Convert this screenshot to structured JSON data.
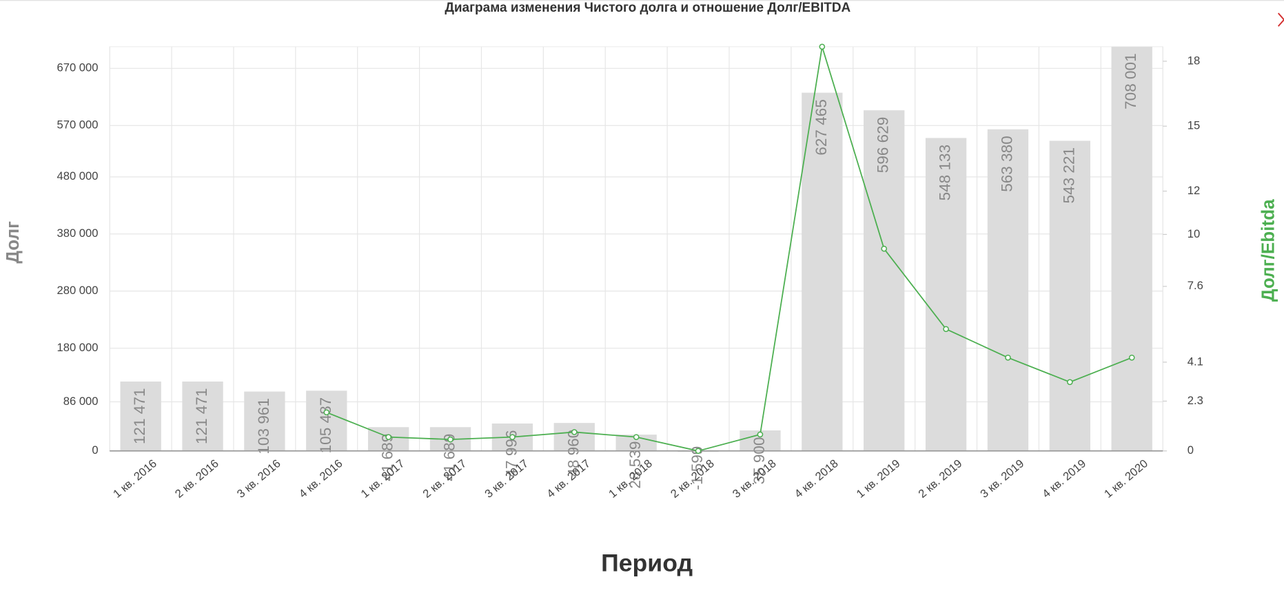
{
  "chart_data": {
    "type": "bar",
    "title": "Диаграма изменения Чистого долга и отношение Долг/EBITDA",
    "xlabel": "Период",
    "categories": [
      "1 кв. 2016",
      "2 кв. 2016",
      "3 кв. 2016",
      "4 кв. 2016",
      "1 кв. 2017",
      "2 кв. 2017",
      "3 кв. 2017",
      "4 кв. 2017",
      "1 кв. 2018",
      "2 кв. 2018",
      "3 кв. 2018",
      "4 кв. 2018",
      "1 кв. 2019",
      "2 кв. 2019",
      "3 кв. 2019",
      "4 кв. 2019",
      "1 кв. 2020"
    ],
    "series": [
      {
        "name": "Долг",
        "type": "bar",
        "color": "#dcdcdc",
        "values": [
          121471,
          121471,
          103961,
          105487,
          41689,
          41689,
          47996,
          48960,
          28539,
          -1599,
          35900,
          627465,
          596629,
          548133,
          563380,
          543221,
          708001
        ],
        "value_labels": [
          "121 471",
          "121 471",
          "103 961",
          "105 487",
          "41 689",
          "41 689",
          "47 996",
          "48 960",
          "28 539",
          "-1 599",
          "35 900",
          "627 465",
          "596 629",
          "548 133",
          "563 380",
          "543 221",
          "708 001"
        ]
      },
      {
        "name": "Долг/Ebitda",
        "type": "line",
        "axis": "y2",
        "color": "#4caf50",
        "values": [
          null,
          null,
          null,
          1.78,
          0.64,
          0.53,
          0.64,
          0.87,
          0.64,
          0,
          0.76,
          18.67,
          9.34,
          5.63,
          4.31,
          3.18,
          4.31
        ]
      }
    ],
    "ylim": [
      0,
      708001
    ],
    "yticks": [
      0,
      {
        "value": 86000,
        "label": "86 000"
      },
      {
        "value": 180000,
        "label": "180 000"
      },
      {
        "value": 280000,
        "label": "280 000"
      },
      {
        "value": 380000,
        "label": "380 000"
      },
      {
        "value": 480000,
        "label": "480 000"
      },
      {
        "value": 570000,
        "label": "570 000"
      },
      {
        "value": 670000,
        "label": "670 000"
      }
    ],
    "y2lim": [
      0,
      18.67
    ],
    "y2ticks": [
      0,
      2.3,
      4.1,
      7.6,
      10,
      12,
      15,
      18
    ],
    "grid": true
  }
}
